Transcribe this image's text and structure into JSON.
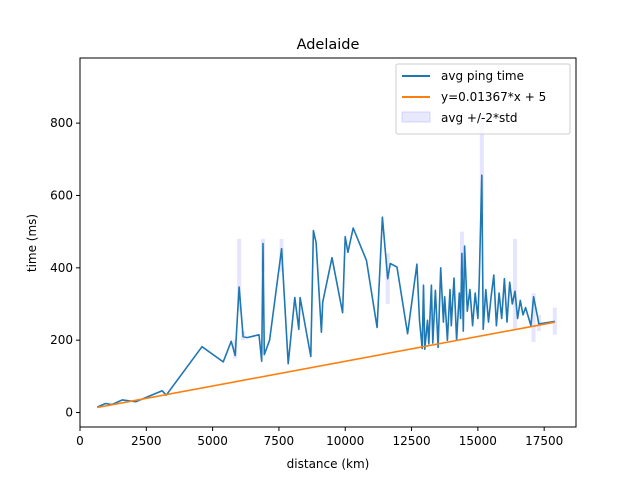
{
  "chart_data": {
    "type": "line",
    "title": "Adelaide",
    "xlabel": "distance (km)",
    "ylabel": "time (ms)",
    "xlim": [
      0,
      18700
    ],
    "ylim": [
      -40,
      980
    ],
    "xticks": [
      0,
      2500,
      5000,
      7500,
      10000,
      12500,
      15000,
      17500
    ],
    "yticks": [
      0,
      200,
      400,
      600,
      800
    ],
    "grid": false,
    "legend_position": "top-right",
    "colors": {
      "avg": "#1f77b4",
      "fit": "#ff7f0e",
      "band": "#b4b4ff"
    },
    "series": [
      {
        "name": "avg ping time",
        "kind": "line",
        "points": [
          [
            650,
            15
          ],
          [
            960,
            25
          ],
          [
            1200,
            22
          ],
          [
            1600,
            35
          ],
          [
            2100,
            30
          ],
          [
            3100,
            60
          ],
          [
            3250,
            48
          ],
          [
            4600,
            182
          ],
          [
            5400,
            140
          ],
          [
            5700,
            197
          ],
          [
            5850,
            158
          ],
          [
            6000,
            347
          ],
          [
            6150,
            210
          ],
          [
            6300,
            207
          ],
          [
            6750,
            215
          ],
          [
            6850,
            142
          ],
          [
            6900,
            467
          ],
          [
            6950,
            160
          ],
          [
            7150,
            200
          ],
          [
            7600,
            453
          ],
          [
            7850,
            135
          ],
          [
            8100,
            318
          ],
          [
            8250,
            230
          ],
          [
            8300,
            318
          ],
          [
            8700,
            155
          ],
          [
            8800,
            503
          ],
          [
            8900,
            470
          ],
          [
            9100,
            222
          ],
          [
            9150,
            305
          ],
          [
            9500,
            428
          ],
          [
            9900,
            276
          ],
          [
            10000,
            486
          ],
          [
            10100,
            443
          ],
          [
            10300,
            510
          ],
          [
            10800,
            420
          ],
          [
            11200,
            235
          ],
          [
            11400,
            540
          ],
          [
            11600,
            370
          ],
          [
            11700,
            412
          ],
          [
            11950,
            402
          ],
          [
            12350,
            218
          ],
          [
            12700,
            410
          ],
          [
            12800,
            255
          ],
          [
            12900,
            177
          ],
          [
            12950,
            352
          ],
          [
            13000,
            175
          ],
          [
            13100,
            255
          ],
          [
            13150,
            190
          ],
          [
            13250,
            352
          ],
          [
            13300,
            192
          ],
          [
            13400,
            338
          ],
          [
            13500,
            180
          ],
          [
            13600,
            400
          ],
          [
            13700,
            250
          ],
          [
            13750,
            320
          ],
          [
            13850,
            200
          ],
          [
            13950,
            340
          ],
          [
            14000,
            240
          ],
          [
            14100,
            372
          ],
          [
            14200,
            200
          ],
          [
            14300,
            330
          ],
          [
            14350,
            260
          ],
          [
            14400,
            440
          ],
          [
            14450,
            225
          ],
          [
            14500,
            460
          ],
          [
            14600,
            280
          ],
          [
            14700,
            340
          ],
          [
            14800,
            240
          ],
          [
            14900,
            330
          ],
          [
            15000,
            260
          ],
          [
            15050,
            360
          ],
          [
            15150,
            656
          ],
          [
            15200,
            230
          ],
          [
            15300,
            340
          ],
          [
            15400,
            250
          ],
          [
            15500,
            320
          ],
          [
            15600,
            380
          ],
          [
            15700,
            240
          ],
          [
            15800,
            330
          ],
          [
            15900,
            260
          ],
          [
            16000,
            370
          ],
          [
            16100,
            250
          ],
          [
            16200,
            360
          ],
          [
            16300,
            300
          ],
          [
            16400,
            335
          ],
          [
            16500,
            260
          ],
          [
            16600,
            310
          ],
          [
            16700,
            270
          ],
          [
            16800,
            290
          ],
          [
            17000,
            240
          ],
          [
            17100,
            320
          ],
          [
            17300,
            245
          ],
          [
            17900,
            252
          ]
        ]
      },
      {
        "name": "y=0.01367*x + 5",
        "kind": "line",
        "slope": 0.01367,
        "intercept": 5,
        "x_range": [
          650,
          17900
        ]
      },
      {
        "name": "avg +/-2*std",
        "kind": "band",
        "band": [
          [
            5850,
            150,
            200
          ],
          [
            6000,
            280,
            480
          ],
          [
            6150,
            200,
            225
          ],
          [
            6900,
            390,
            480
          ],
          [
            7600,
            390,
            480
          ],
          [
            11600,
            300,
            440
          ],
          [
            14400,
            380,
            500
          ],
          [
            15150,
            560,
            830
          ],
          [
            16400,
            230,
            480
          ],
          [
            17100,
            195,
            330
          ],
          [
            17300,
            225,
            270
          ],
          [
            17900,
            215,
            290
          ]
        ]
      }
    ]
  }
}
